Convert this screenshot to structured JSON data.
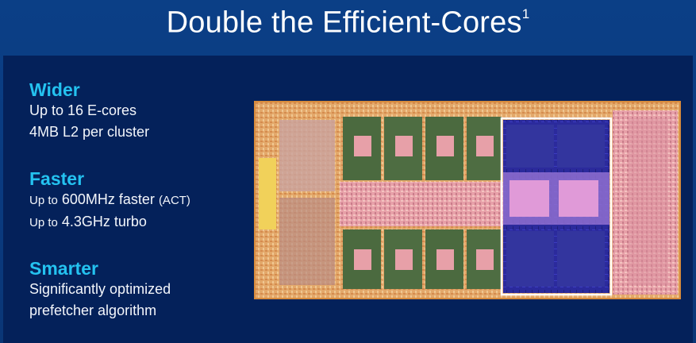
{
  "title": {
    "text": "Double the Efficient-Cores",
    "footnote": "1"
  },
  "features": [
    {
      "heading": "Wider",
      "lines": [
        "Up to 16 E-cores",
        "4MB L2 per cluster"
      ]
    },
    {
      "heading": "Faster",
      "lines": [
        {
          "prefix": "Up to",
          "main": "600MHz faster",
          "suffix": "(ACT)"
        },
        {
          "prefix": "Up to",
          "main": "4.3GHz turbo",
          "suffix": ""
        }
      ]
    },
    {
      "heading": "Smarter",
      "lines": [
        "Significantly optimized",
        "prefetcher algorithm"
      ]
    }
  ],
  "die_image": {
    "icon": "cpu-die-photo",
    "highlight_color": "#ffffff",
    "ecore_color": "#2d2fa8",
    "accent_color": "#e6a0c0"
  }
}
